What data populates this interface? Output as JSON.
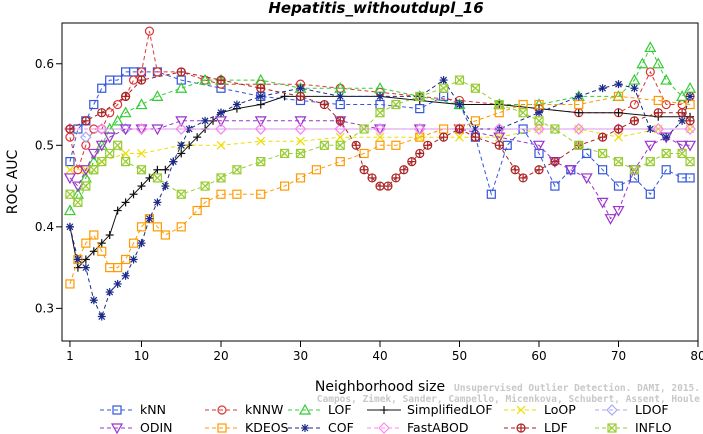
{
  "chart_data": {
    "type": "line",
    "title": "Hepatitis_withoutdupl_16",
    "xlabel": "Neighborhood size",
    "ylabel": "ROC AUC",
    "xlim": [
      0,
      80
    ],
    "ylim": [
      0.26,
      0.65
    ],
    "xticks": [
      1,
      10,
      20,
      30,
      40,
      50,
      60,
      70,
      80
    ],
    "yticks": [
      0.3,
      0.4,
      0.5,
      0.6
    ],
    "grid": false,
    "legend_position": "bottom",
    "series": [
      {
        "name": "kNN",
        "color": "#3355dd",
        "marker": "square",
        "dash": "4,3",
        "x": [
          1,
          2,
          3,
          4,
          5,
          6,
          7,
          8,
          9,
          10,
          12,
          15,
          20,
          25,
          30,
          35,
          40,
          45,
          48,
          50,
          52,
          54,
          56,
          58,
          60,
          62,
          64,
          66,
          68,
          70,
          72,
          74,
          76,
          78,
          79
        ],
        "y": [
          0.48,
          0.52,
          0.53,
          0.55,
          0.57,
          0.58,
          0.58,
          0.59,
          0.59,
          0.59,
          0.59,
          0.58,
          0.57,
          0.56,
          0.555,
          0.55,
          0.55,
          0.545,
          0.56,
          0.55,
          0.51,
          0.44,
          0.5,
          0.52,
          0.49,
          0.45,
          0.47,
          0.49,
          0.47,
          0.45,
          0.46,
          0.44,
          0.47,
          0.46,
          0.46
        ]
      },
      {
        "name": "kNNW",
        "color": "#dd3333",
        "marker": "circle",
        "dash": "4,3",
        "x": [
          1,
          2,
          3,
          4,
          5,
          6,
          7,
          8,
          9,
          10,
          11,
          12,
          15,
          18,
          20,
          25,
          30,
          35,
          40,
          45,
          50,
          55,
          60,
          65,
          70,
          72,
          74,
          76,
          78,
          79
        ],
        "y": [
          0.51,
          0.47,
          0.5,
          0.52,
          0.52,
          0.54,
          0.55,
          0.56,
          0.58,
          0.59,
          0.64,
          0.59,
          0.59,
          0.58,
          0.575,
          0.575,
          0.575,
          0.57,
          0.565,
          0.56,
          0.555,
          0.55,
          0.545,
          0.54,
          0.54,
          0.55,
          0.59,
          0.55,
          0.55,
          0.56
        ]
      },
      {
        "name": "LOF",
        "color": "#33cc33",
        "marker": "triangle",
        "dash": "4,3",
        "x": [
          1,
          2,
          3,
          4,
          5,
          6,
          7,
          8,
          10,
          12,
          15,
          18,
          20,
          25,
          30,
          35,
          40,
          45,
          50,
          55,
          60,
          65,
          70,
          72,
          73,
          74,
          75,
          76,
          78,
          79
        ],
        "y": [
          0.42,
          0.44,
          0.46,
          0.48,
          0.5,
          0.52,
          0.53,
          0.54,
          0.55,
          0.56,
          0.57,
          0.58,
          0.58,
          0.58,
          0.57,
          0.57,
          0.57,
          0.56,
          0.55,
          0.55,
          0.55,
          0.56,
          0.56,
          0.58,
          0.6,
          0.62,
          0.6,
          0.58,
          0.56,
          0.57
        ]
      },
      {
        "name": "SimplifiedLOF",
        "color": "#111111",
        "marker": "plus",
        "dash": "",
        "x": [
          1,
          2,
          3,
          4,
          5,
          6,
          7,
          8,
          9,
          10,
          11,
          12,
          13,
          14,
          15,
          16,
          17,
          18,
          19,
          20,
          22,
          25,
          28,
          30,
          35,
          40,
          45,
          50,
          55,
          60,
          65,
          70,
          75,
          79
        ],
        "y": [
          0.4,
          0.35,
          0.36,
          0.37,
          0.38,
          0.39,
          0.42,
          0.43,
          0.44,
          0.45,
          0.46,
          0.47,
          0.47,
          0.48,
          0.49,
          0.5,
          0.51,
          0.52,
          0.53,
          0.54,
          0.545,
          0.55,
          0.56,
          0.56,
          0.56,
          0.56,
          0.555,
          0.55,
          0.55,
          0.545,
          0.54,
          0.54,
          0.535,
          0.535
        ]
      },
      {
        "name": "LoOP",
        "color": "#eedd00",
        "marker": "x",
        "dash": "4,3",
        "x": [
          1,
          3,
          5,
          8,
          10,
          15,
          20,
          25,
          30,
          35,
          40,
          45,
          50,
          55,
          60,
          65,
          70,
          75,
          79
        ],
        "y": [
          0.47,
          0.47,
          0.48,
          0.49,
          0.49,
          0.5,
          0.5,
          0.505,
          0.505,
          0.51,
          0.51,
          0.51,
          0.51,
          0.51,
          0.52,
          0.52,
          0.51,
          0.52,
          0.52
        ]
      },
      {
        "name": "LDOF",
        "color": "#aaaaee",
        "marker": "diamond",
        "dash": "4,3",
        "x": [
          1,
          3,
          5,
          8,
          10,
          15,
          20,
          25,
          30,
          35,
          40,
          45,
          50,
          55,
          60,
          65,
          70,
          75,
          79
        ],
        "y": [
          0.52,
          0.51,
          0.52,
          0.52,
          0.52,
          0.52,
          0.52,
          0.52,
          0.52,
          0.52,
          0.52,
          0.52,
          0.52,
          0.52,
          0.52,
          0.52,
          0.52,
          0.52,
          0.52
        ]
      },
      {
        "name": "ODIN",
        "color": "#9933cc",
        "marker": "triangle-down",
        "dash": "4,3",
        "x": [
          1,
          2,
          3,
          4,
          5,
          6,
          8,
          10,
          12,
          15,
          20,
          25,
          30,
          35,
          40,
          45,
          50,
          55,
          60,
          62,
          64,
          66,
          68,
          69,
          70,
          72,
          74,
          76,
          78,
          79
        ],
        "y": [
          0.46,
          0.45,
          0.47,
          0.49,
          0.5,
          0.51,
          0.52,
          0.52,
          0.52,
          0.53,
          0.53,
          0.53,
          0.53,
          0.53,
          0.52,
          0.52,
          0.52,
          0.51,
          0.5,
          0.48,
          0.47,
          0.46,
          0.43,
          0.41,
          0.42,
          0.47,
          0.5,
          0.51,
          0.5,
          0.5
        ]
      },
      {
        "name": "KDEOS",
        "color": "#ff9900",
        "marker": "square",
        "dash": "4,3",
        "x": [
          1,
          2,
          3,
          4,
          5,
          6,
          7,
          8,
          9,
          10,
          11,
          12,
          13,
          15,
          17,
          18,
          20,
          22,
          25,
          28,
          30,
          32,
          35,
          38,
          40,
          42,
          45,
          48,
          50,
          52,
          55,
          58,
          60,
          65,
          70,
          75,
          79
        ],
        "y": [
          0.33,
          0.36,
          0.38,
          0.39,
          0.37,
          0.35,
          0.35,
          0.36,
          0.38,
          0.4,
          0.41,
          0.4,
          0.39,
          0.4,
          0.42,
          0.43,
          0.44,
          0.44,
          0.44,
          0.45,
          0.46,
          0.47,
          0.48,
          0.49,
          0.5,
          0.5,
          0.51,
          0.52,
          0.52,
          0.53,
          0.54,
          0.55,
          0.55,
          0.55,
          0.56,
          0.555,
          0.55
        ]
      },
      {
        "name": "COF",
        "color": "#1a2a88",
        "marker": "asterisk",
        "dash": "4,3",
        "x": [
          1,
          2,
          3,
          4,
          5,
          6,
          7,
          8,
          9,
          10,
          11,
          12,
          13,
          14,
          15,
          16,
          18,
          20,
          22,
          25,
          30,
          35,
          40,
          45,
          48,
          50,
          52,
          55,
          60,
          65,
          68,
          70,
          72,
          74,
          76,
          78,
          79
        ],
        "y": [
          0.4,
          0.36,
          0.35,
          0.31,
          0.29,
          0.32,
          0.33,
          0.34,
          0.36,
          0.38,
          0.41,
          0.43,
          0.45,
          0.48,
          0.5,
          0.52,
          0.53,
          0.54,
          0.55,
          0.56,
          0.57,
          0.56,
          0.56,
          0.56,
          0.58,
          0.55,
          0.52,
          0.52,
          0.54,
          0.56,
          0.57,
          0.575,
          0.57,
          0.52,
          0.51,
          0.53,
          0.56
        ]
      },
      {
        "name": "FastABOD",
        "color": "#ff88ee",
        "marker": "diamond",
        "dash": "4,3",
        "x": [
          1,
          5,
          10,
          15,
          20,
          25,
          30,
          35,
          40,
          45,
          50,
          55,
          60,
          65,
          70,
          75,
          79
        ],
        "y": [
          0.52,
          0.52,
          0.52,
          0.52,
          0.52,
          0.52,
          0.52,
          0.52,
          0.52,
          0.52,
          0.52,
          0.52,
          0.52,
          0.52,
          0.52,
          0.52,
          0.52
        ]
      },
      {
        "name": "LDF",
        "color": "#aa2222",
        "marker": "circle-plus",
        "dash": "4,3",
        "x": [
          1,
          3,
          5,
          8,
          10,
          15,
          20,
          25,
          30,
          33,
          35,
          37,
          38,
          39,
          40,
          41,
          42,
          43,
          44,
          45,
          46,
          48,
          50,
          52,
          55,
          57,
          58,
          60,
          62,
          65,
          68,
          70,
          72,
          75,
          78,
          79
        ],
        "y": [
          0.52,
          0.53,
          0.54,
          0.56,
          0.58,
          0.59,
          0.58,
          0.57,
          0.56,
          0.55,
          0.53,
          0.5,
          0.47,
          0.46,
          0.45,
          0.45,
          0.46,
          0.47,
          0.48,
          0.49,
          0.5,
          0.51,
          0.52,
          0.51,
          0.5,
          0.47,
          0.46,
          0.47,
          0.48,
          0.5,
          0.51,
          0.52,
          0.53,
          0.54,
          0.54,
          0.53
        ]
      },
      {
        "name": "INFLO",
        "color": "#99cc33",
        "marker": "star",
        "dash": "4,3",
        "x": [
          1,
          2,
          3,
          4,
          5,
          6,
          7,
          8,
          10,
          12,
          15,
          18,
          20,
          22,
          25,
          28,
          30,
          33,
          35,
          38,
          40,
          42,
          45,
          48,
          50,
          52,
          55,
          58,
          60,
          62,
          65,
          68,
          70,
          72,
          74,
          76,
          78,
          79
        ],
        "y": [
          0.44,
          0.43,
          0.45,
          0.47,
          0.48,
          0.49,
          0.5,
          0.48,
          0.47,
          0.46,
          0.44,
          0.45,
          0.46,
          0.47,
          0.48,
          0.49,
          0.49,
          0.5,
          0.5,
          0.52,
          0.54,
          0.55,
          0.56,
          0.57,
          0.58,
          0.57,
          0.55,
          0.54,
          0.53,
          0.52,
          0.5,
          0.49,
          0.48,
          0.47,
          0.48,
          0.49,
          0.49,
          0.48
        ]
      }
    ]
  },
  "watermark": {
    "line1": "Unsupervised Outlier Detection. DAMI, 2015.",
    "line2": "Campos, Zimek, Sander, Campello, Micenkova, Schubert, Assent, Houle"
  }
}
